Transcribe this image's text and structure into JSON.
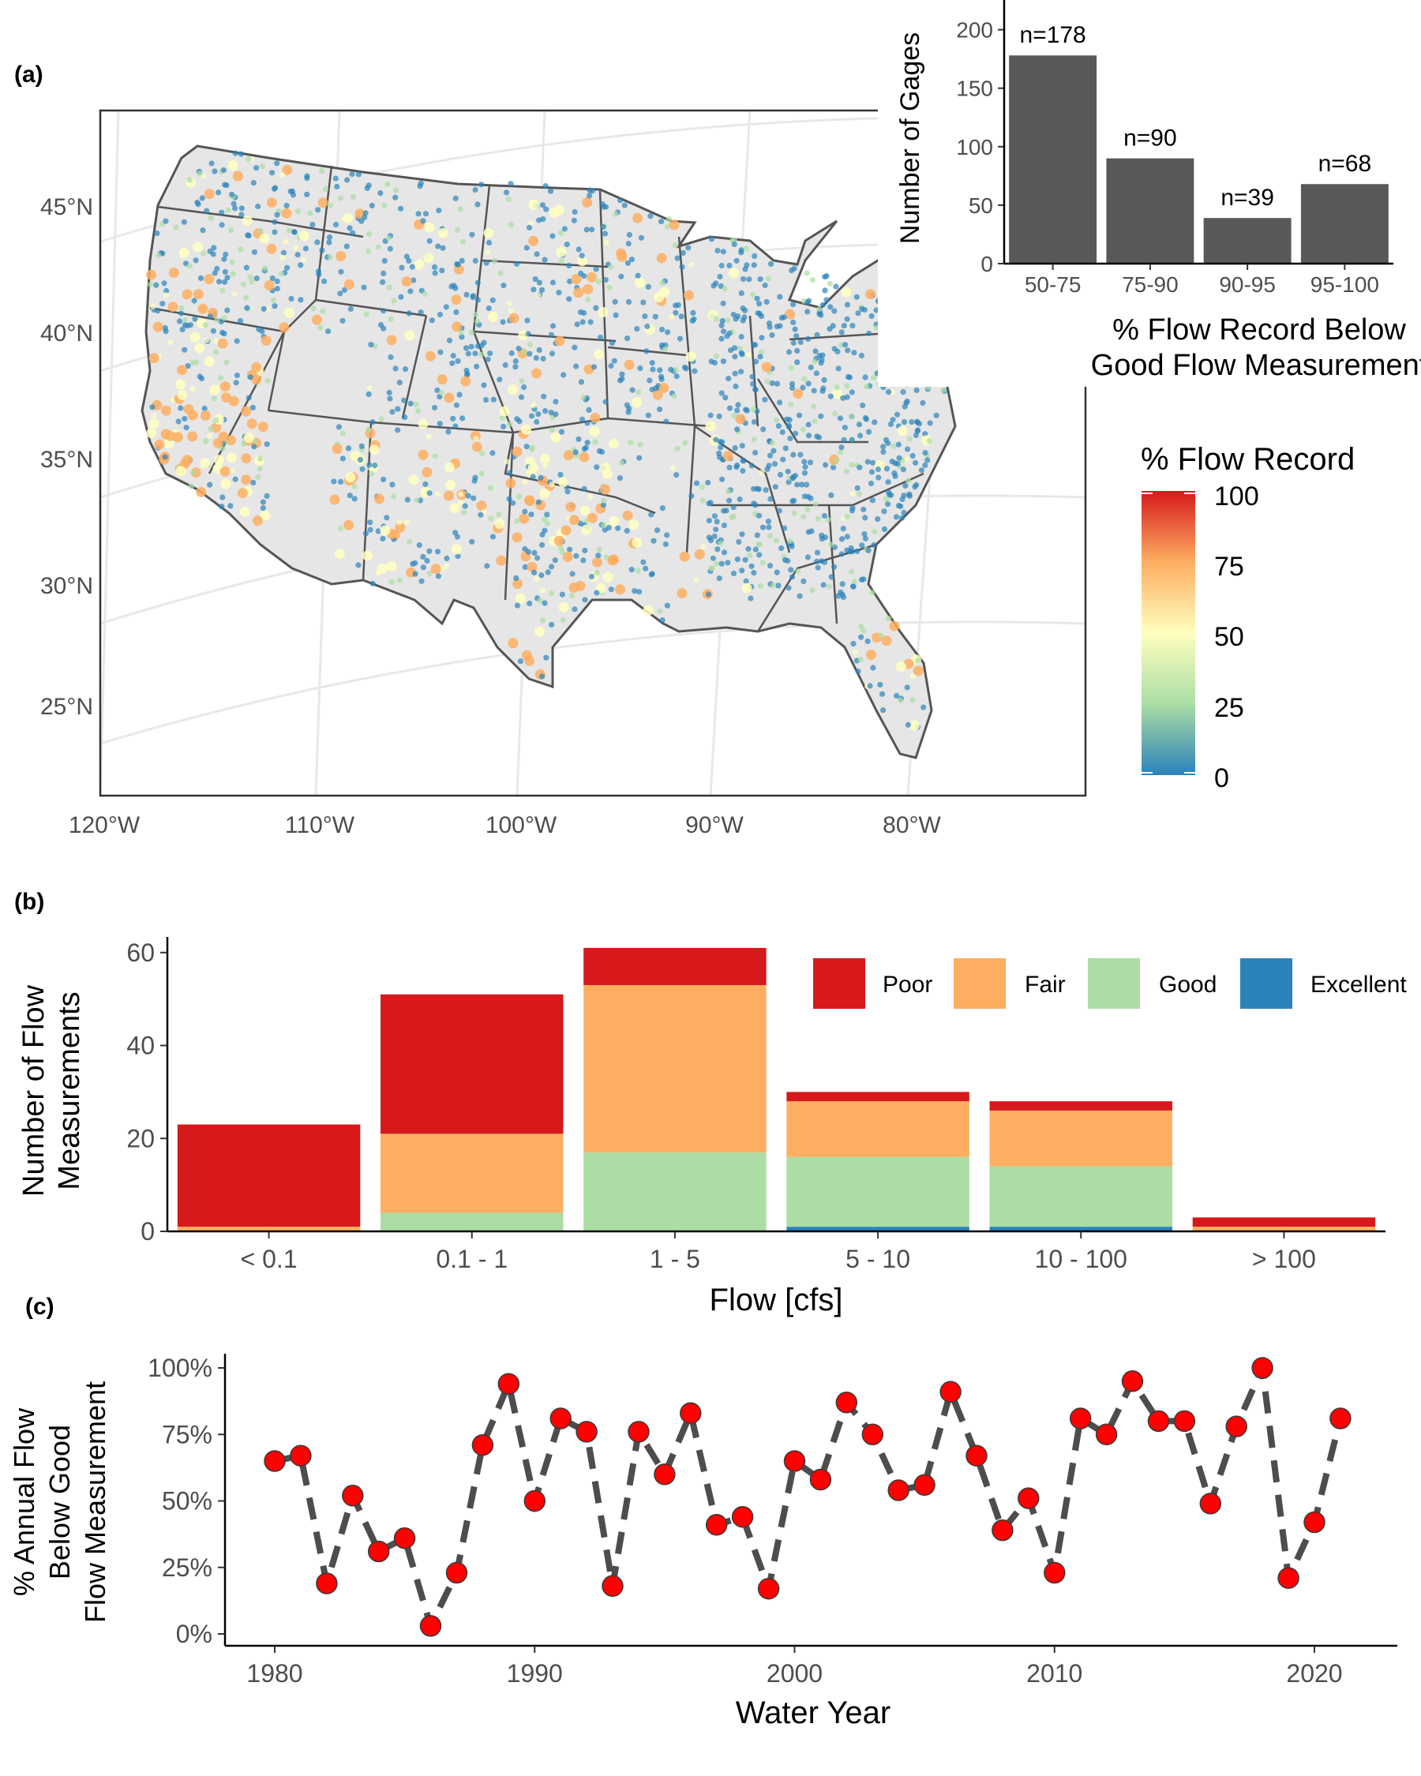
{
  "colors": {
    "map_fill": "#E6E6E6",
    "map_border": "#555555",
    "grid": "#E8E8E8",
    "bar_gray": "#595959",
    "poor": "#D7191C",
    "fair": "#FDAE61",
    "good": "#ABDDA4",
    "excellent": "#2B83BA",
    "point": "#FF0000",
    "line": "#4D4D4D",
    "scale": [
      "#2B83BA",
      "#ABDDA4",
      "#FFFFBF",
      "#FDAE61",
      "#D7191C"
    ]
  },
  "panel_a": {
    "tag": "(a)",
    "lat_labels": [
      "45°N",
      "40°N",
      "35°N",
      "30°N",
      "25°N"
    ],
    "lon_labels": [
      "120°W",
      "110°W",
      "100°W",
      "90°W",
      "80°W"
    ],
    "legend": {
      "title": "% Flow Record",
      "ticks": [
        "100",
        "75",
        "50",
        "25",
        "0"
      ]
    }
  },
  "panel_b": {
    "tag": "(b)",
    "legend": [
      "Poor",
      "Fair",
      "Good",
      "Excellent"
    ]
  },
  "panel_c": {
    "tag": "(c)"
  },
  "chart_data": [
    {
      "id": "inset",
      "type": "bar",
      "categories": [
        "50-75",
        "75-90",
        "90-95",
        "95-100"
      ],
      "values": [
        178,
        90,
        39,
        68
      ],
      "labels": [
        "n=178",
        "n=90",
        "n=39",
        "n=68"
      ],
      "ylabel": "Number of Gages",
      "xlabel": "% Flow Record Below Good Flow Measurement",
      "xlabel_lines": [
        "% Flow Record Below",
        "Good Flow Measurement"
      ],
      "ylim": [
        0,
        220
      ],
      "yticks": [
        0,
        50,
        100,
        150,
        200
      ]
    },
    {
      "id": "stacked",
      "type": "bar",
      "stacked": true,
      "categories": [
        "< 0.1",
        "0.1 - 1",
        "1 - 5",
        "5 - 10",
        "10 - 100",
        "> 100"
      ],
      "series": [
        {
          "name": "Excellent",
          "values": [
            0,
            0,
            0,
            1,
            1,
            0
          ]
        },
        {
          "name": "Good",
          "values": [
            0,
            4,
            17,
            15,
            13,
            0
          ]
        },
        {
          "name": "Fair",
          "values": [
            1,
            17,
            36,
            12,
            12,
            1
          ]
        },
        {
          "name": "Poor",
          "values": [
            22,
            30,
            8,
            2,
            2,
            2
          ]
        }
      ],
      "xlabel": "Flow [cfs]",
      "ylabel": "Number of Flow Measurements",
      "ylabel_lines": [
        "Number of Flow",
        "Measurements"
      ],
      "ylim": [
        0,
        62
      ],
      "yticks": [
        0,
        20,
        40,
        60
      ]
    },
    {
      "id": "timeseries",
      "type": "line",
      "x": [
        1980,
        1981,
        1982,
        1983,
        1984,
        1985,
        1986,
        1987,
        1988,
        1989,
        1990,
        1991,
        1992,
        1993,
        1994,
        1995,
        1996,
        1997,
        1998,
        1999,
        2000,
        2001,
        2002,
        2003,
        2004,
        2005,
        2006,
        2007,
        2008,
        2009,
        2010,
        2011,
        2012,
        2013,
        2014,
        2015,
        2016,
        2017,
        2018,
        2019,
        2020,
        2021
      ],
      "y": [
        65,
        67,
        19,
        52,
        31,
        36,
        3,
        23,
        71,
        94,
        50,
        81,
        76,
        18,
        76,
        60,
        83,
        41,
        44,
        17,
        65,
        58,
        87,
        75,
        54,
        56,
        91,
        67,
        39,
        51,
        23,
        81,
        75,
        95,
        80,
        80,
        49,
        78,
        100,
        21,
        42,
        81
      ],
      "xlabel": "Water Year",
      "ylabel": "% Annual Flow Below Good Flow Measurement",
      "ylabel_lines": [
        "% Annual Flow",
        "Below Good",
        "Flow Measurement"
      ],
      "xlim": [
        1979,
        2023
      ],
      "ylim": [
        0,
        100
      ],
      "xticks": [
        "1980",
        "1990",
        "2000",
        "2010",
        "2020"
      ],
      "yticks": [
        "0%",
        "25%",
        "50%",
        "75%",
        "100%"
      ]
    }
  ]
}
